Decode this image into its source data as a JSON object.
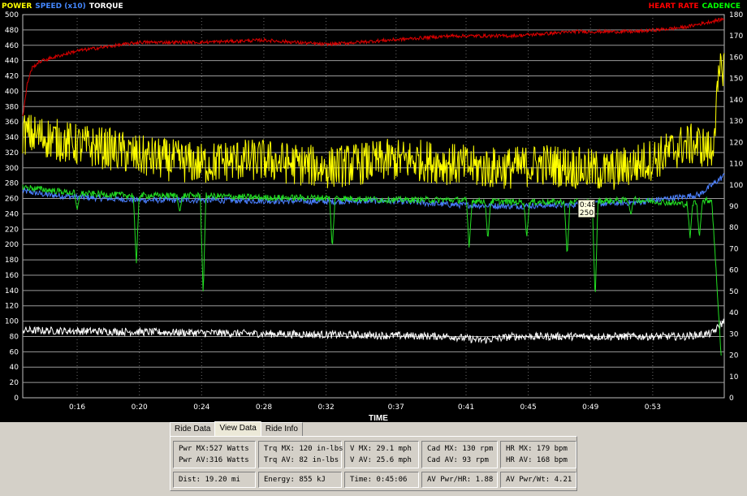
{
  "legend": {
    "left": [
      {
        "label": "POWER",
        "color": "#ffff00"
      },
      {
        "label": "SPEED (x10)",
        "color": "#4488ff"
      },
      {
        "label": "TORQUE",
        "color": "#ffffff"
      }
    ],
    "right": [
      {
        "label": "HEART RATE",
        "color": "#ff0000"
      },
      {
        "label": "CADENCE",
        "color": "#00ff00"
      }
    ]
  },
  "chart_data": {
    "type": "line",
    "xlabel": "TIME",
    "x_ticks": [
      "0:16",
      "0:20",
      "0:24",
      "0:28",
      "0:32",
      "0:37",
      "0:41",
      "0:45",
      "0:49",
      "0:53"
    ],
    "x_range_minutes": [
      12.5,
      57.6
    ],
    "x_tick_minutes": [
      16,
      20,
      24,
      28,
      32,
      36.5,
      41,
      45,
      49,
      53
    ],
    "left_axis": {
      "min": 0,
      "max": 500,
      "step": 20
    },
    "right_axis": {
      "min": 0,
      "max": 180,
      "step": 10
    },
    "grid": true,
    "tooltip": {
      "time": "0:48",
      "value": "250",
      "x_minutes": 48.2,
      "y_value": 250
    },
    "series": [
      {
        "name": "POWER",
        "axis": "left",
        "color": "#ffff00",
        "x": [
          12.5,
          14,
          16,
          18,
          20,
          22,
          24,
          26,
          28,
          30,
          32,
          34,
          36,
          38,
          40,
          42,
          44,
          46,
          48,
          50,
          52,
          53.5,
          55,
          56,
          56.8,
          57.3,
          57.6
        ],
        "values": [
          345,
          340,
          330,
          325,
          315,
          310,
          305,
          310,
          310,
          305,
          300,
          305,
          310,
          310,
          305,
          300,
          300,
          305,
          300,
          295,
          305,
          315,
          330,
          330,
          320,
          420,
          440
        ],
        "noise": 28
      },
      {
        "name": "SPEED (x10)",
        "axis": "left",
        "color": "#4a7fff",
        "x": [
          12.5,
          14,
          16,
          20,
          24,
          28,
          32,
          36,
          40,
          44,
          48,
          52,
          54,
          56,
          57.6
        ],
        "values": [
          270,
          265,
          262,
          258,
          258,
          257,
          256,
          257,
          252,
          250,
          252,
          255,
          260,
          265,
          290
        ],
        "noise": 4
      },
      {
        "name": "CADENCE",
        "axis": "right",
        "color": "#22dd22",
        "x": [
          12.5,
          16,
          20,
          24,
          28,
          32,
          36,
          40,
          44,
          48,
          52,
          55,
          56.8,
          57.4
        ],
        "values": [
          99,
          96,
          95,
          95,
          94,
          94,
          93,
          93,
          92,
          92,
          93,
          91,
          93,
          20
        ],
        "noise": 1.5,
        "dips": [
          [
            16,
            88
          ],
          [
            19.8,
            62
          ],
          [
            22.6,
            87
          ],
          [
            24.1,
            48
          ],
          [
            32.4,
            70
          ],
          [
            41.2,
            70
          ],
          [
            42.4,
            74
          ],
          [
            44.9,
            75
          ],
          [
            47.5,
            66
          ],
          [
            49.3,
            45
          ],
          [
            51.6,
            86
          ],
          [
            55.4,
            75
          ],
          [
            56.0,
            75
          ]
        ]
      },
      {
        "name": "HEART RATE",
        "axis": "right",
        "color": "#dd0000",
        "x": [
          12.5,
          12.8,
          13.1,
          13.6,
          14.5,
          16,
          20,
          24,
          28,
          32,
          36,
          40,
          44,
          48,
          52,
          55,
          57.6
        ],
        "values": [
          132,
          148,
          155,
          158,
          160,
          163,
          167,
          167,
          168,
          166,
          168,
          170,
          170,
          172,
          172,
          174,
          178
        ],
        "noise": 0.8
      },
      {
        "name": "TORQUE",
        "axis": "left",
        "color": "#ffffff",
        "x": [
          12.5,
          20,
          30,
          40,
          42,
          44,
          50,
          55,
          56.8,
          57.6
        ],
        "values": [
          88,
          86,
          83,
          80,
          75,
          80,
          80,
          80,
          84,
          100
        ],
        "noise": 5
      }
    ]
  },
  "tabs": [
    "Ride Data",
    "View Data",
    "Ride Info"
  ],
  "active_tab": 1,
  "stats": {
    "row1": [
      [
        "Pwr MX:527 Watts",
        "Pwr AV:316 Watts"
      ],
      [
        "Trq MX: 120 in-lbs",
        "Trq AV: 82 in-lbs"
      ],
      [
        "V MX: 29.1 mph",
        "V AV: 25.6 mph"
      ],
      [
        "Cad MX: 130 rpm",
        "Cad AV: 93 rpm"
      ],
      [
        "HR MX: 179 bpm",
        "HR AV: 168 bpm"
      ]
    ],
    "row2": [
      "Dist: 19.20 mi",
      "Energy: 855 kJ",
      "Time: 0:45:06",
      "AV Pwr/HR: 1.88",
      "AV Pwr/Wt: 4.21"
    ]
  }
}
